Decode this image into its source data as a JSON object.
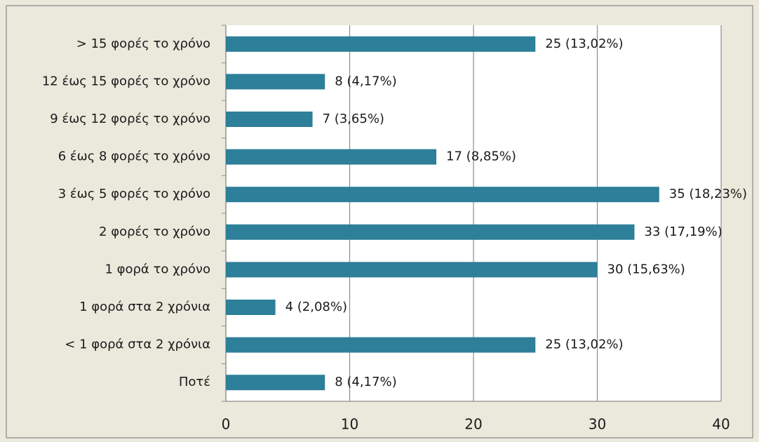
{
  "chart_data": {
    "type": "bar",
    "orientation": "horizontal",
    "categories": [
      "> 15 φορές το χρόνο",
      "12 έως 15 φορές το χρόνο",
      "9 έως 12 φορές το χρόνο",
      "6 έως 8 φορές το χρόνο",
      "3 έως 5 φορές το χρόνο",
      "2 φορές το χρόνο",
      "1 φορά το χρόνο",
      "1 φορά στα 2 χρόνια",
      "< 1 φορά στα 2 χρόνια",
      "Ποτέ"
    ],
    "values": [
      25,
      8,
      7,
      17,
      35,
      33,
      30,
      4,
      25,
      8
    ],
    "value_labels": [
      "25 (13,02%)",
      "8 (4,17%)",
      "7 (3,65%)",
      "17 (8,85%)",
      "35 (18,23%)",
      "33 (17,19%)",
      "30 (15,63%)",
      "4 (2,08%)",
      "25 (13,02%)",
      "8 (4,17%)"
    ],
    "color": "#2e7f99",
    "xlim": [
      0,
      40
    ],
    "xticks": [
      0,
      10,
      20,
      30,
      40
    ],
    "grid": true
  }
}
